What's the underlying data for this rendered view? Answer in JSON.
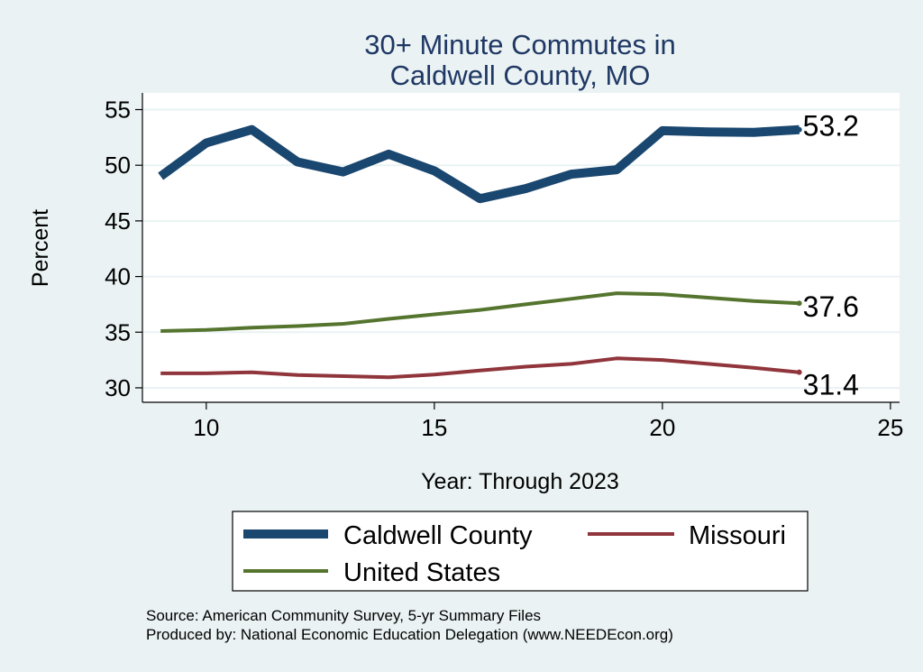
{
  "chart_data": {
    "type": "line",
    "title": [
      "30+ Minute Commutes in",
      "Caldwell County, MO"
    ],
    "xlabel": "Year: Through 2023",
    "ylabel": "Percent",
    "xlim": [
      8.6,
      25.2
    ],
    "ylim": [
      28.7,
      56.5
    ],
    "xticks": [
      10,
      15,
      20,
      25
    ],
    "yticks": [
      30,
      35,
      40,
      45,
      50,
      55
    ],
    "grid": true,
    "x": [
      9,
      10,
      11,
      12,
      13,
      14,
      15,
      16,
      17,
      18,
      19,
      20,
      21,
      22,
      23
    ],
    "series": [
      {
        "name": "Caldwell County",
        "color": "#1a476f",
        "width": 10,
        "values": [
          49.0,
          52.0,
          53.2,
          50.3,
          49.4,
          51.0,
          49.5,
          47.0,
          47.9,
          49.2,
          49.6,
          53.1,
          53.0,
          52.95,
          53.2
        ],
        "end_label": "53.2"
      },
      {
        "name": "United States",
        "color": "#55752f",
        "width": 4,
        "values": [
          35.1,
          35.2,
          35.4,
          35.55,
          35.75,
          36.2,
          36.6,
          37.0,
          37.5,
          38.0,
          38.5,
          38.4,
          38.1,
          37.8,
          37.6
        ],
        "end_label": "37.6"
      },
      {
        "name": "Missouri",
        "color": "#90353b",
        "width": 4,
        "values": [
          31.3,
          31.3,
          31.4,
          31.15,
          31.05,
          30.95,
          31.2,
          31.55,
          31.9,
          32.15,
          32.65,
          32.5,
          32.15,
          31.8,
          31.4
        ],
        "end_label": "31.4"
      }
    ],
    "legend": {
      "placement": "bottom",
      "items": [
        "Caldwell County",
        "Missouri",
        "United States"
      ]
    },
    "notes": [
      "Source: American Community Survey, 5-yr Summary Files",
      "Produced by: National Economic Education Delegation (www.NEEDEcon.org)"
    ]
  }
}
